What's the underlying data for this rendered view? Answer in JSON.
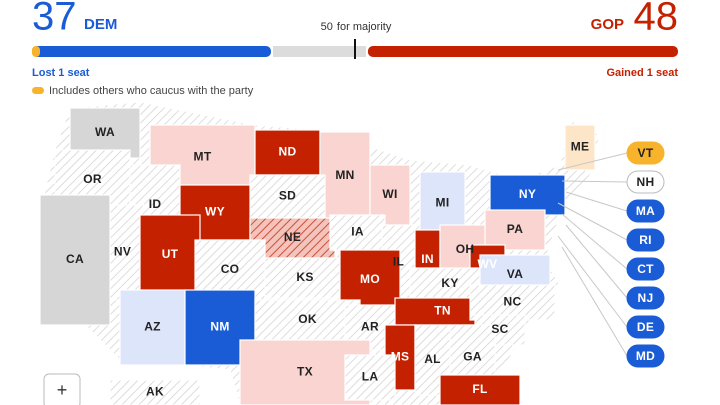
{
  "header": {
    "dem": {
      "seats": 37,
      "party": "DEM",
      "change": "Lost 1 seat",
      "color": "#1a5bd6"
    },
    "gop": {
      "seats": 48,
      "party": "GOP",
      "change": "Gained 1 seat",
      "color": "#c42100"
    },
    "majority": 50,
    "majority_text": "for majority",
    "note": "Includes others who caucus with the party",
    "note_color": "#f7b32b"
  },
  "map": {
    "states": [
      {
        "label": "WA",
        "fill": "#d6d6d6"
      },
      {
        "label": "MT",
        "fill": "#f9d4d0"
      },
      {
        "label": "ND",
        "fill": "#c42100"
      },
      {
        "label": "MN",
        "fill": "#f9d4d0"
      },
      {
        "label": "ME",
        "fill": "#fde6c8"
      },
      {
        "label": "OR",
        "fill": "hatched"
      },
      {
        "label": "ID",
        "fill": "hatched"
      },
      {
        "label": "SD",
        "fill": "hatched"
      },
      {
        "label": "WI",
        "fill": "#f9d4d0"
      },
      {
        "label": "NY",
        "fill": "#1a5bd6"
      },
      {
        "label": "WY",
        "fill": "#c42100"
      },
      {
        "label": "MI",
        "fill": "#dde5fb"
      },
      {
        "label": "NE",
        "fill": "hatched-red"
      },
      {
        "label": "IA",
        "fill": "hatched"
      },
      {
        "label": "NV",
        "fill": "hatched"
      },
      {
        "label": "UT",
        "fill": "#c42100"
      },
      {
        "label": "CO",
        "fill": "hatched"
      },
      {
        "label": "IL",
        "fill": "hatched"
      },
      {
        "label": "IN",
        "fill": "#c42100"
      },
      {
        "label": "OH",
        "fill": "#f9d4d0"
      },
      {
        "label": "PA",
        "fill": "#f9d4d0"
      },
      {
        "label": "CA",
        "fill": "#d6d6d6"
      },
      {
        "label": "WV",
        "fill": "#c42100"
      },
      {
        "label": "KS",
        "fill": "hatched"
      },
      {
        "label": "MO",
        "fill": "#c42100"
      },
      {
        "label": "KY",
        "fill": "hatched"
      },
      {
        "label": "VA",
        "fill": "#dde5fb"
      },
      {
        "label": "AZ",
        "fill": "#dde5fb"
      },
      {
        "label": "NM",
        "fill": "#1a5bd6"
      },
      {
        "label": "OK",
        "fill": "hatched"
      },
      {
        "label": "AR",
        "fill": "hatched"
      },
      {
        "label": "TN",
        "fill": "#c42100"
      },
      {
        "label": "NC",
        "fill": "hatched"
      },
      {
        "label": "SC",
        "fill": "hatched"
      },
      {
        "label": "MS",
        "fill": "#c42100"
      },
      {
        "label": "AL",
        "fill": "hatched"
      },
      {
        "label": "GA",
        "fill": "hatched"
      },
      {
        "label": "TX",
        "fill": "#f9d4d0"
      },
      {
        "label": "LA",
        "fill": "hatched"
      },
      {
        "label": "AK",
        "fill": "hatched"
      },
      {
        "label": "FL",
        "fill": "#c42100"
      }
    ],
    "small_states": [
      {
        "label": "VT",
        "fill": "#f7b32b"
      },
      {
        "label": "NH",
        "fill": "#ffffff"
      },
      {
        "label": "MA",
        "fill": "#1a5bd6"
      },
      {
        "label": "RI",
        "fill": "#1a5bd6"
      },
      {
        "label": "CT",
        "fill": "#1a5bd6"
      },
      {
        "label": "NJ",
        "fill": "#1a5bd6"
      },
      {
        "label": "DE",
        "fill": "#1a5bd6"
      },
      {
        "label": "MD",
        "fill": "#1a5bd6"
      }
    ]
  },
  "zoom": "+"
}
